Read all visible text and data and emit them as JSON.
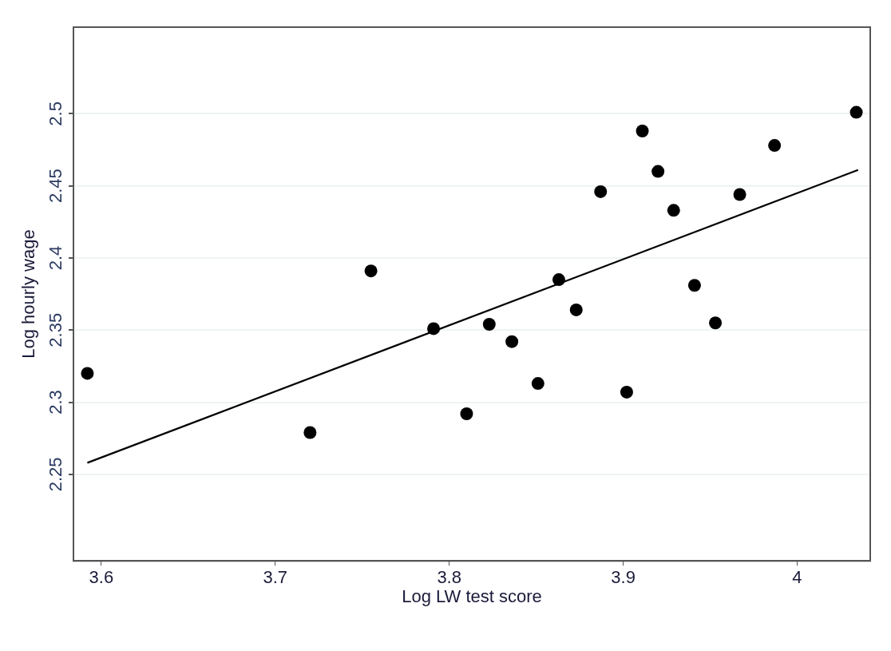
{
  "chart_data": {
    "type": "scatter",
    "xlabel": "Log LW test score",
    "ylabel": "Log hourly wage",
    "xlim": [
      3.584,
      4.042
    ],
    "xticks": [
      3.6,
      3.7,
      3.8,
      3.9,
      4
    ],
    "ylim": [
      2.19,
      2.56
    ],
    "yticks": [
      2.25,
      2.3,
      2.35,
      2.4,
      2.45,
      2.5
    ],
    "grid": "y",
    "legend": false,
    "marker": "circle",
    "series": [
      {
        "color": "#000000",
        "x": [
          3.592,
          3.72,
          3.755,
          3.791,
          3.81,
          3.823,
          3.836,
          3.851,
          3.863,
          3.873,
          3.887,
          3.902,
          3.911,
          3.92,
          3.929,
          3.941,
          3.953,
          3.967,
          3.987,
          4.034
        ],
        "values": [
          2.32,
          2.279,
          2.391,
          2.351,
          2.292,
          2.354,
          2.342,
          2.313,
          2.385,
          2.364,
          2.446,
          2.307,
          2.488,
          2.46,
          2.433,
          2.381,
          2.355,
          2.444,
          2.478,
          2.501
        ]
      },
      {
        "type": "line",
        "color": "#000000",
        "marker": "none",
        "x": [
          3.592,
          4.035
        ],
        "values": [
          2.258,
          2.461
        ]
      }
    ]
  }
}
